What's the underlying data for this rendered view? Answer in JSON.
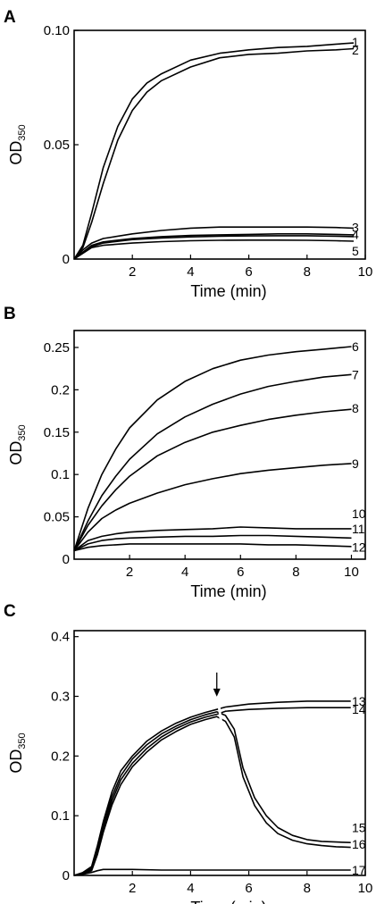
{
  "chart_data": [
    {
      "type": "line",
      "panel": "A",
      "xlabel": "Time (min)",
      "ylabel_main": "OD",
      "ylabel_sub": "350",
      "xlim": [
        0,
        10
      ],
      "ylim": [
        0,
        0.1
      ],
      "x_ticks": [
        {
          "v": 2,
          "label": "2"
        },
        {
          "v": 4,
          "label": "4"
        },
        {
          "v": 6,
          "label": "6"
        },
        {
          "v": 8,
          "label": "8"
        },
        {
          "v": 10,
          "label": "10"
        }
      ],
      "y_ticks": [
        {
          "v": 0,
          "label": "0"
        },
        {
          "v": 0.05,
          "label": "0.05"
        },
        {
          "v": 0.1,
          "label": "0.10"
        }
      ],
      "origin_label": "",
      "series": [
        {
          "name": "1",
          "x": [
            0,
            0.3,
            0.6,
            1,
            1.5,
            2,
            2.5,
            3,
            4,
            5,
            6,
            7,
            8,
            9,
            9.6
          ],
          "y": [
            0,
            0.006,
            0.02,
            0.04,
            0.058,
            0.07,
            0.077,
            0.081,
            0.087,
            0.09,
            0.0915,
            0.0925,
            0.093,
            0.094,
            0.0945
          ]
        },
        {
          "name": "2",
          "x": [
            0,
            0.3,
            0.6,
            1,
            1.5,
            2,
            2.5,
            3,
            4,
            5,
            6,
            7,
            8,
            9,
            9.6
          ],
          "y": [
            0,
            0.005,
            0.016,
            0.033,
            0.052,
            0.065,
            0.073,
            0.078,
            0.084,
            0.088,
            0.0895,
            0.09,
            0.091,
            0.0915,
            0.092
          ]
        },
        {
          "name": "3",
          "x": [
            0,
            0.3,
            0.6,
            1,
            2,
            3,
            4,
            5,
            6,
            7,
            8,
            9,
            9.6
          ],
          "y": [
            0,
            0.004,
            0.007,
            0.009,
            0.011,
            0.0125,
            0.0135,
            0.014,
            0.014,
            0.014,
            0.014,
            0.0138,
            0.0135
          ]
        },
        {
          "name": "4",
          "x": [
            0,
            0.3,
            0.6,
            1,
            2,
            3,
            4,
            5,
            6,
            7,
            8,
            9,
            9.6
          ],
          "y": [
            0,
            0.003,
            0.006,
            0.0075,
            0.009,
            0.0098,
            0.0103,
            0.0106,
            0.0108,
            0.011,
            0.011,
            0.0108,
            0.0106
          ]
        },
        {
          "name": "",
          "x": [
            0,
            0.3,
            0.6,
            1,
            2,
            3,
            4,
            5,
            6,
            7,
            8,
            9,
            9.6
          ],
          "y": [
            0,
            0.0028,
            0.0055,
            0.007,
            0.0085,
            0.0092,
            0.0097,
            0.01,
            0.0101,
            0.0102,
            0.0102,
            0.01,
            0.0098
          ]
        },
        {
          "name": "5",
          "x": [
            0,
            0.3,
            0.6,
            1,
            2,
            3,
            4,
            5,
            6,
            7,
            8,
            9,
            9.6
          ],
          "y": [
            0,
            0.0025,
            0.005,
            0.006,
            0.007,
            0.0076,
            0.008,
            0.0082,
            0.0083,
            0.0083,
            0.0082,
            0.008,
            0.0078
          ]
        }
      ],
      "label_y": [
        0.095,
        0.0915,
        0.0138,
        0.0108,
        0.0098,
        0.0035
      ]
    },
    {
      "type": "line",
      "panel": "B",
      "xlabel": "Time (min)",
      "ylabel_main": "OD",
      "ylabel_sub": "350",
      "xlim": [
        0,
        10.5
      ],
      "ylim": [
        0,
        0.27
      ],
      "x_ticks": [
        {
          "v": 2,
          "label": "2"
        },
        {
          "v": 4,
          "label": "4"
        },
        {
          "v": 6,
          "label": "6"
        },
        {
          "v": 8,
          "label": "8"
        },
        {
          "v": 10,
          "label": "10"
        }
      ],
      "y_ticks": [
        {
          "v": 0.05,
          "label": "0.05"
        },
        {
          "v": 0.1,
          "label": "0.1"
        },
        {
          "v": 0.15,
          "label": "0.15"
        },
        {
          "v": 0.2,
          "label": "0.2"
        },
        {
          "v": 0.25,
          "label": "0.25"
        }
      ],
      "origin_label": "0",
      "series": [
        {
          "name": "6",
          "x": [
            0,
            0.5,
            1,
            1.5,
            2,
            3,
            4,
            5,
            6,
            7,
            8,
            9,
            10
          ],
          "y": [
            0.01,
            0.06,
            0.1,
            0.13,
            0.155,
            0.188,
            0.21,
            0.225,
            0.235,
            0.241,
            0.245,
            0.248,
            0.251
          ]
        },
        {
          "name": "7",
          "x": [
            0,
            0.5,
            1,
            1.5,
            2,
            3,
            4,
            5,
            6,
            7,
            8,
            9,
            10
          ],
          "y": [
            0.01,
            0.045,
            0.075,
            0.098,
            0.118,
            0.148,
            0.168,
            0.183,
            0.195,
            0.204,
            0.21,
            0.215,
            0.218
          ]
        },
        {
          "name": "8",
          "x": [
            0,
            0.5,
            1,
            1.5,
            2,
            3,
            4,
            5,
            6,
            7,
            8,
            9,
            10
          ],
          "y": [
            0.01,
            0.04,
            0.063,
            0.082,
            0.098,
            0.122,
            0.138,
            0.15,
            0.158,
            0.165,
            0.17,
            0.174,
            0.177
          ]
        },
        {
          "name": "9",
          "x": [
            0,
            0.5,
            1,
            1.5,
            2,
            3,
            4,
            5,
            6,
            7,
            8,
            9,
            10
          ],
          "y": [
            0.01,
            0.032,
            0.048,
            0.058,
            0.066,
            0.078,
            0.088,
            0.095,
            0.101,
            0.105,
            0.108,
            0.111,
            0.113
          ]
        },
        {
          "name": "11",
          "x": [
            0,
            0.5,
            1,
            1.5,
            2,
            3,
            4,
            5,
            6,
            7,
            8,
            9,
            10
          ],
          "y": [
            0.01,
            0.022,
            0.027,
            0.03,
            0.032,
            0.034,
            0.035,
            0.036,
            0.038,
            0.037,
            0.036,
            0.036,
            0.036
          ]
        },
        {
          "name": "",
          "x": [
            0,
            0.5,
            1,
            1.5,
            2,
            3,
            4,
            5,
            6,
            7,
            8,
            9,
            10
          ],
          "y": [
            0.01,
            0.018,
            0.022,
            0.024,
            0.025,
            0.026,
            0.027,
            0.027,
            0.028,
            0.028,
            0.027,
            0.026,
            0.025
          ]
        },
        {
          "name": "12",
          "x": [
            0,
            0.5,
            1,
            1.5,
            2,
            3,
            4,
            5,
            6,
            7,
            8,
            9,
            10
          ],
          "y": [
            0.01,
            0.014,
            0.016,
            0.017,
            0.018,
            0.018,
            0.018,
            0.018,
            0.018,
            0.017,
            0.017,
            0.016,
            0.015
          ]
        }
      ],
      "extra_labels": [
        {
          "text": "10",
          "y": 0.054
        }
      ],
      "label_y": [
        0.251,
        0.218,
        0.178,
        0.113,
        0.036,
        0.026,
        0.014
      ]
    },
    {
      "type": "line",
      "panel": "C",
      "xlabel": "Time (min)",
      "ylabel_main": "OD",
      "ylabel_sub": "350",
      "xlim": [
        0,
        10
      ],
      "ylim": [
        0,
        0.41
      ],
      "x_ticks": [
        {
          "v": 2,
          "label": "2"
        },
        {
          "v": 4,
          "label": "4"
        },
        {
          "v": 6,
          "label": "6"
        },
        {
          "v": 8,
          "label": "8"
        },
        {
          "v": 10,
          "label": "10"
        }
      ],
      "y_ticks": [
        {
          "v": 0.1,
          "label": "0.1"
        },
        {
          "v": 0.2,
          "label": "0.2"
        },
        {
          "v": 0.3,
          "label": "0.3"
        },
        {
          "v": 0.4,
          "label": "0.4"
        }
      ],
      "origin_label": "0",
      "series": [
        {
          "name": "13",
          "x": [
            0,
            0.3,
            0.6,
            0.8,
            1,
            1.3,
            1.6,
            2,
            2.5,
            3,
            3.5,
            4,
            4.5,
            4.9,
            5.2,
            6,
            7,
            8,
            9,
            9.5
          ],
          "y": [
            0,
            0.005,
            0.015,
            0.05,
            0.09,
            0.14,
            0.175,
            0.2,
            0.225,
            0.242,
            0.255,
            0.265,
            0.273,
            0.278,
            0.282,
            0.287,
            0.29,
            0.292,
            0.292,
            0.292
          ]
        },
        {
          "name": "14",
          "x": [
            0,
            0.3,
            0.6,
            0.8,
            1,
            1.3,
            1.6,
            2,
            2.5,
            3,
            3.5,
            4,
            4.5,
            4.9,
            5.2,
            6,
            7,
            8,
            9,
            9.5
          ],
          "y": [
            0,
            0.004,
            0.01,
            0.04,
            0.078,
            0.125,
            0.16,
            0.188,
            0.213,
            0.232,
            0.246,
            0.257,
            0.265,
            0.27,
            0.275,
            0.278,
            0.28,
            0.281,
            0.281,
            0.281
          ]
        },
        {
          "name": "15",
          "x": [
            0,
            0.3,
            0.6,
            0.8,
            1,
            1.3,
            1.6,
            2,
            2.5,
            3,
            3.5,
            4,
            4.5,
            4.9,
            5.2,
            5.5,
            5.8,
            6.2,
            6.6,
            7,
            7.5,
            8,
            8.5,
            9,
            9.5
          ],
          "y": [
            0,
            0.004,
            0.012,
            0.045,
            0.085,
            0.132,
            0.167,
            0.195,
            0.219,
            0.237,
            0.25,
            0.261,
            0.269,
            0.274,
            0.268,
            0.245,
            0.18,
            0.13,
            0.1,
            0.08,
            0.067,
            0.06,
            0.057,
            0.056,
            0.055
          ]
        },
        {
          "name": "16",
          "x": [
            0,
            0.3,
            0.6,
            0.8,
            1,
            1.3,
            1.6,
            2,
            2.5,
            3,
            3.5,
            4,
            4.5,
            4.9,
            5.2,
            5.5,
            5.8,
            6.2,
            6.6,
            7,
            7.5,
            8,
            8.5,
            9,
            9.5
          ],
          "y": [
            0,
            0.003,
            0.008,
            0.035,
            0.072,
            0.118,
            0.152,
            0.182,
            0.207,
            0.227,
            0.241,
            0.253,
            0.261,
            0.266,
            0.258,
            0.232,
            0.165,
            0.117,
            0.088,
            0.07,
            0.059,
            0.053,
            0.05,
            0.048,
            0.047
          ]
        },
        {
          "name": "17",
          "x": [
            0,
            0.3,
            0.6,
            0.8,
            1,
            1.5,
            2,
            3,
            4,
            5,
            6,
            7,
            8,
            9,
            9.5
          ],
          "y": [
            0,
            0.002,
            0.005,
            0.008,
            0.01,
            0.01,
            0.01,
            0.009,
            0.009,
            0.009,
            0.009,
            0.009,
            0.009,
            0.009,
            0.009
          ]
        }
      ],
      "label_y": [
        0.292,
        0.278,
        0.08,
        0.052,
        0.009
      ],
      "arrow_x": 4.9
    }
  ],
  "colors": {
    "line": "#000000",
    "background": "#ffffff"
  }
}
